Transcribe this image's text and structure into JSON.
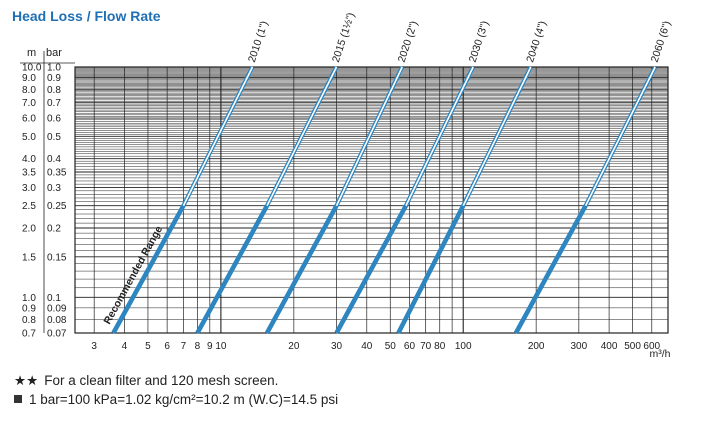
{
  "page_title": "Head Loss / Flow Rate",
  "notes": {
    "note1_symbol": "★★",
    "note1_text": "For a clean filter and 120 mesh screen.",
    "note2_text": "1 bar=100 kPa=1.02 kg/cm²=10.2 m (W.C)=14.5 psi"
  },
  "colors": {
    "title": "#1f6fb5",
    "series": "#2e86c1",
    "grid": "#222222"
  },
  "chart_data": {
    "type": "line",
    "x_scale": "log",
    "y_scale": "log",
    "xlabel": "m³/h",
    "ylabel_left": "m",
    "ylabel_right": "bar",
    "xlim": [
      2.5,
      700
    ],
    "ylim_bar": [
      0.07,
      1.0
    ],
    "x_ticks": [
      3,
      4,
      5,
      6,
      7,
      8,
      9,
      10,
      20,
      30,
      40,
      50,
      60,
      70,
      80,
      100,
      200,
      300,
      400,
      500,
      600
    ],
    "y_ticks": [
      {
        "m": "10.0",
        "bar": "1.0",
        "v": 1.0
      },
      {
        "m": "9.0",
        "bar": "0.9",
        "v": 0.9
      },
      {
        "m": "8.0",
        "bar": "0.8",
        "v": 0.8
      },
      {
        "m": "7.0",
        "bar": "0.7",
        "v": 0.7
      },
      {
        "m": "6.0",
        "bar": "0.6",
        "v": 0.6
      },
      {
        "m": "5.0",
        "bar": "0.5",
        "v": 0.5
      },
      {
        "m": "4.0",
        "bar": "0.4",
        "v": 0.4
      },
      {
        "m": "3.5",
        "bar": "0.35",
        "v": 0.35
      },
      {
        "m": "3.0",
        "bar": "0.3",
        "v": 0.3
      },
      {
        "m": "2.5",
        "bar": "0.25",
        "v": 0.25
      },
      {
        "m": "2.0",
        "bar": "0.2",
        "v": 0.2
      },
      {
        "m": "1.5",
        "bar": "0.15",
        "v": 0.15
      },
      {
        "m": "1.0",
        "bar": "0.1",
        "v": 0.1
      },
      {
        "m": "0.9",
        "bar": "0.09",
        "v": 0.09
      },
      {
        "m": "0.8",
        "bar": "0.08",
        "v": 0.08
      },
      {
        "m": "0.7",
        "bar": "0.07",
        "v": 0.07
      }
    ],
    "recommended_range_label": "Recommended Range",
    "recommended_range_bar": [
      0.07,
      0.25
    ],
    "series": [
      {
        "name": "2010 (1\")",
        "points": [
          [
            3.6,
            0.07
          ],
          [
            7.0,
            0.25
          ],
          [
            13.5,
            1.0
          ]
        ]
      },
      {
        "name": "2015 (1½\")",
        "points": [
          [
            8.0,
            0.07
          ],
          [
            15.5,
            0.25
          ],
          [
            30.0,
            1.0
          ]
        ]
      },
      {
        "name": "2020 (2\")",
        "points": [
          [
            15.5,
            0.07
          ],
          [
            30.0,
            0.25
          ],
          [
            56.0,
            1.0
          ]
        ]
      },
      {
        "name": "2030 (3\")",
        "points": [
          [
            30.0,
            0.07
          ],
          [
            58.0,
            0.25
          ],
          [
            110.0,
            1.0
          ]
        ]
      },
      {
        "name": "2040 (4\")",
        "points": [
          [
            54.0,
            0.07
          ],
          [
            100.0,
            0.25
          ],
          [
            190.0,
            1.0
          ]
        ]
      },
      {
        "name": "2060 (6\")",
        "points": [
          [
            165.0,
            0.07
          ],
          [
            320.0,
            0.25
          ],
          [
            620.0,
            1.0
          ]
        ]
      }
    ]
  }
}
